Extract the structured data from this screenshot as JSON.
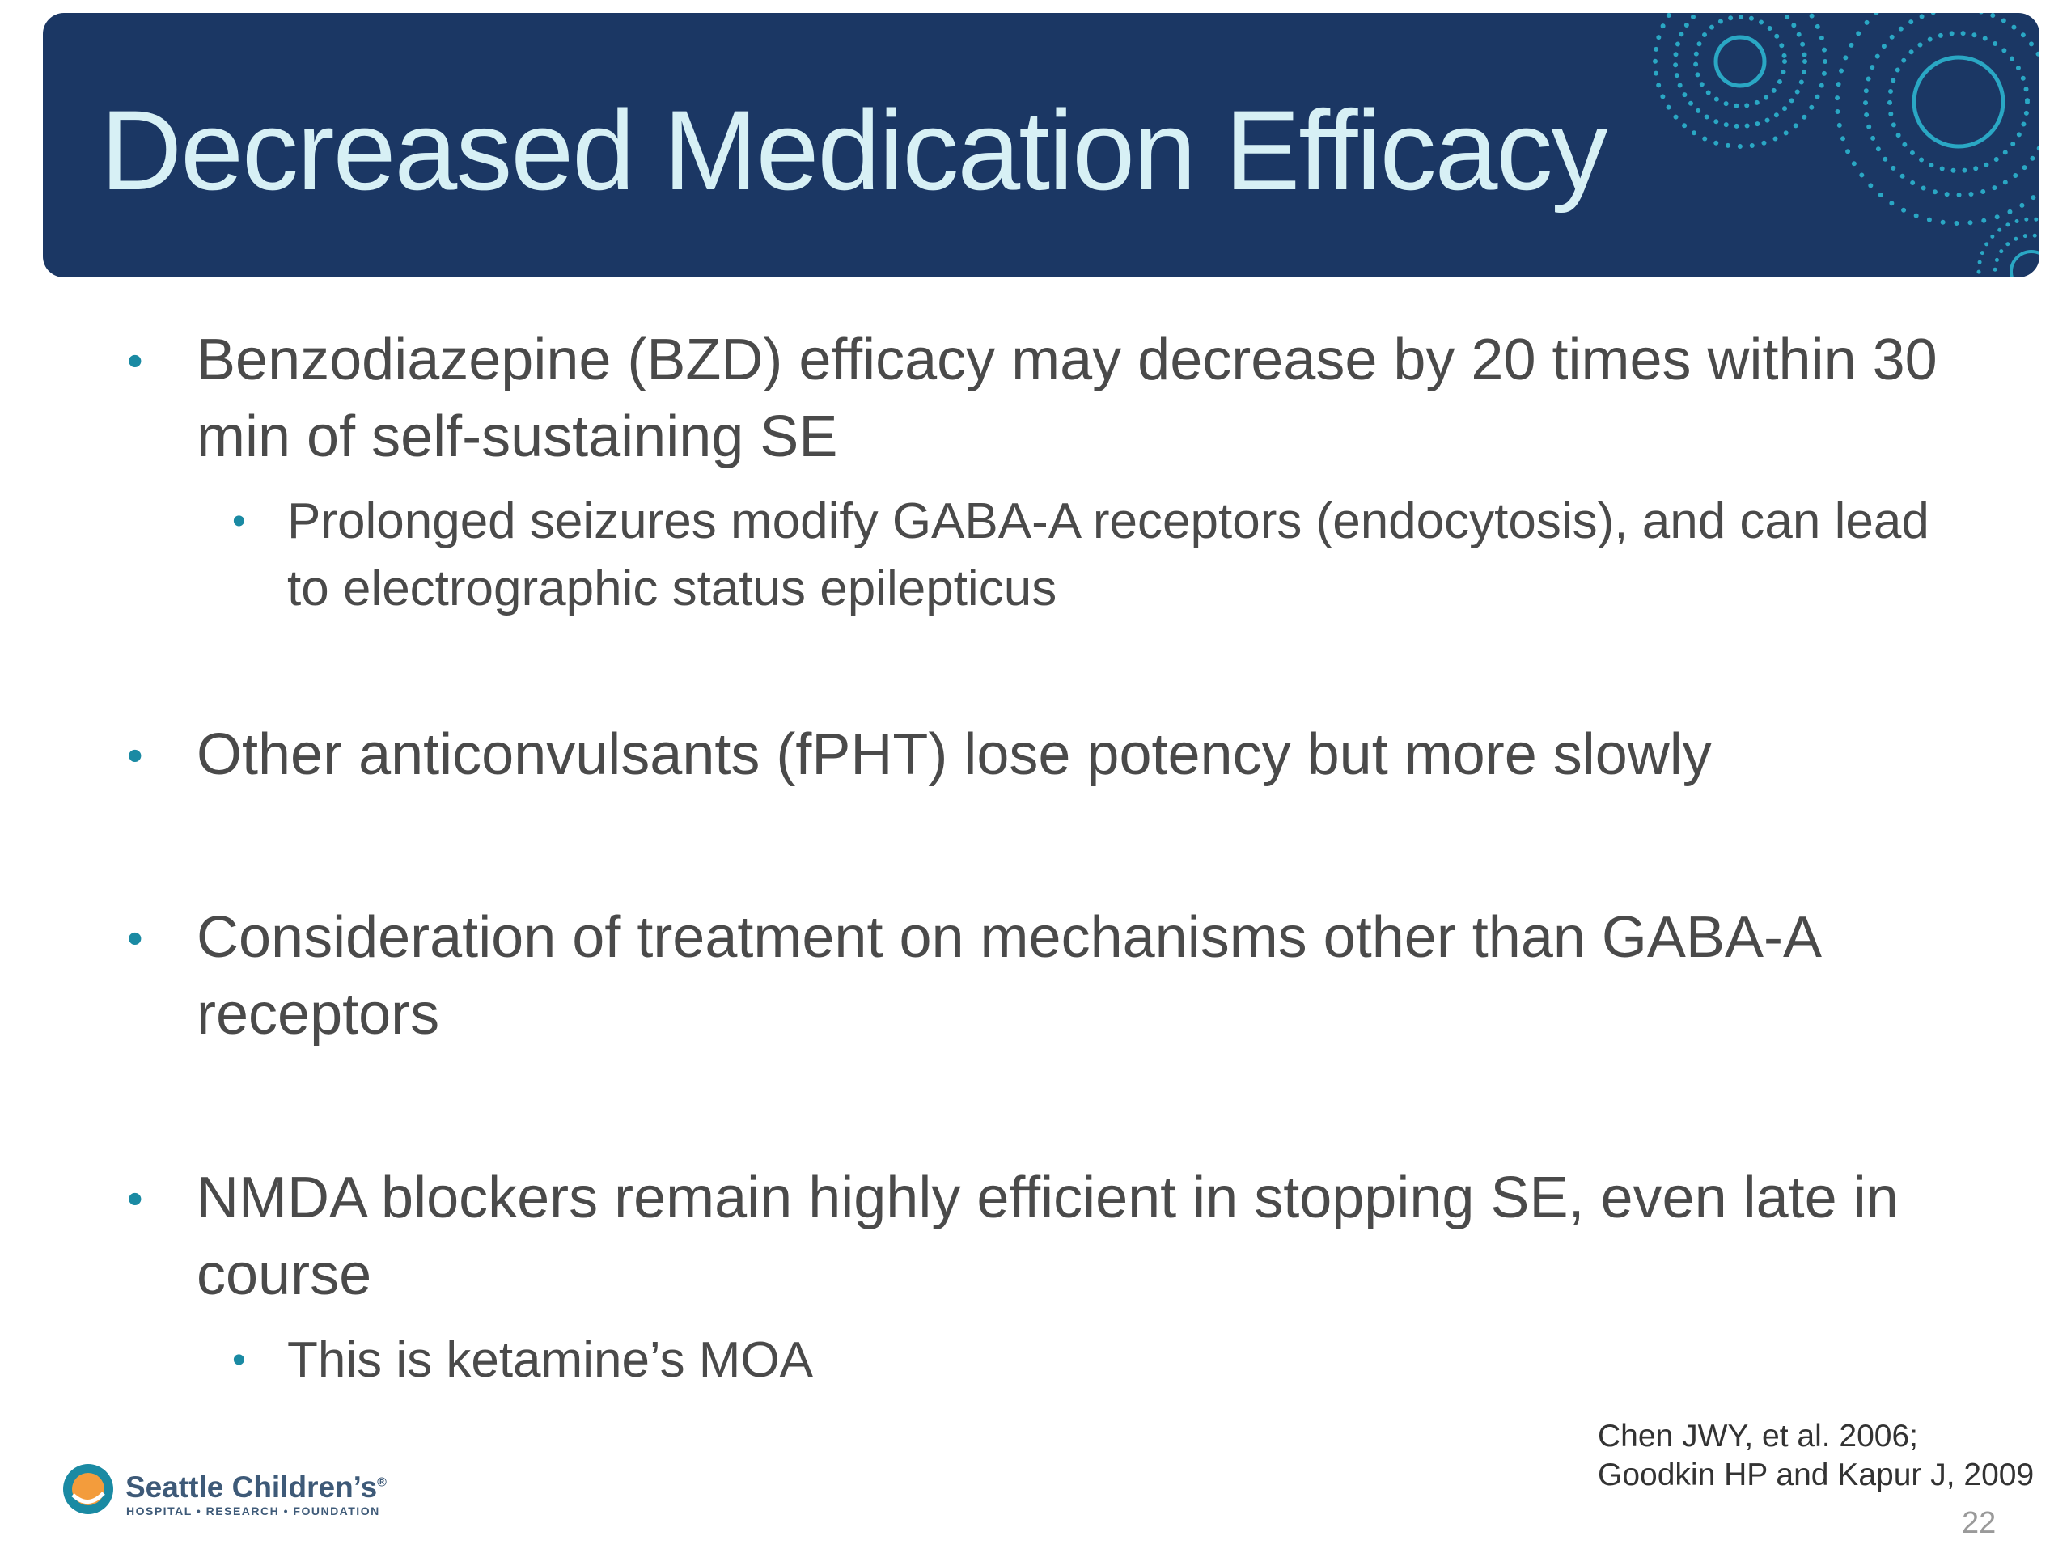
{
  "header": {
    "title": "Decreased Medication Efficacy"
  },
  "bullets": [
    {
      "text": "Benzodiazepine (BZD) efficacy may decrease by 20 times within 30 min of self-sustaining SE",
      "sub": [
        "Prolonged seizures modify GABA-A receptors (endocytosis), and can lead to electrographic status epilepticus"
      ]
    },
    {
      "text": "Other anticonvulsants (fPHT) lose potency but more slowly"
    },
    {
      "text": "Consideration of treatment on mechanisms other than GABA-A receptors"
    },
    {
      "text": "NMDA blockers remain highly efficient in stopping SE, even late in course",
      "sub": [
        "This is ketamine’s MOA"
      ]
    }
  ],
  "citation": [
    "Chen JWY, et al. 2006;",
    "Goodkin HP and Kapur J, 2009"
  ],
  "page_number": "22",
  "logo": {
    "name": "Seattle Children’s",
    "mark": "®",
    "tagline": "HOSPITAL • RESEARCH • FOUNDATION"
  }
}
